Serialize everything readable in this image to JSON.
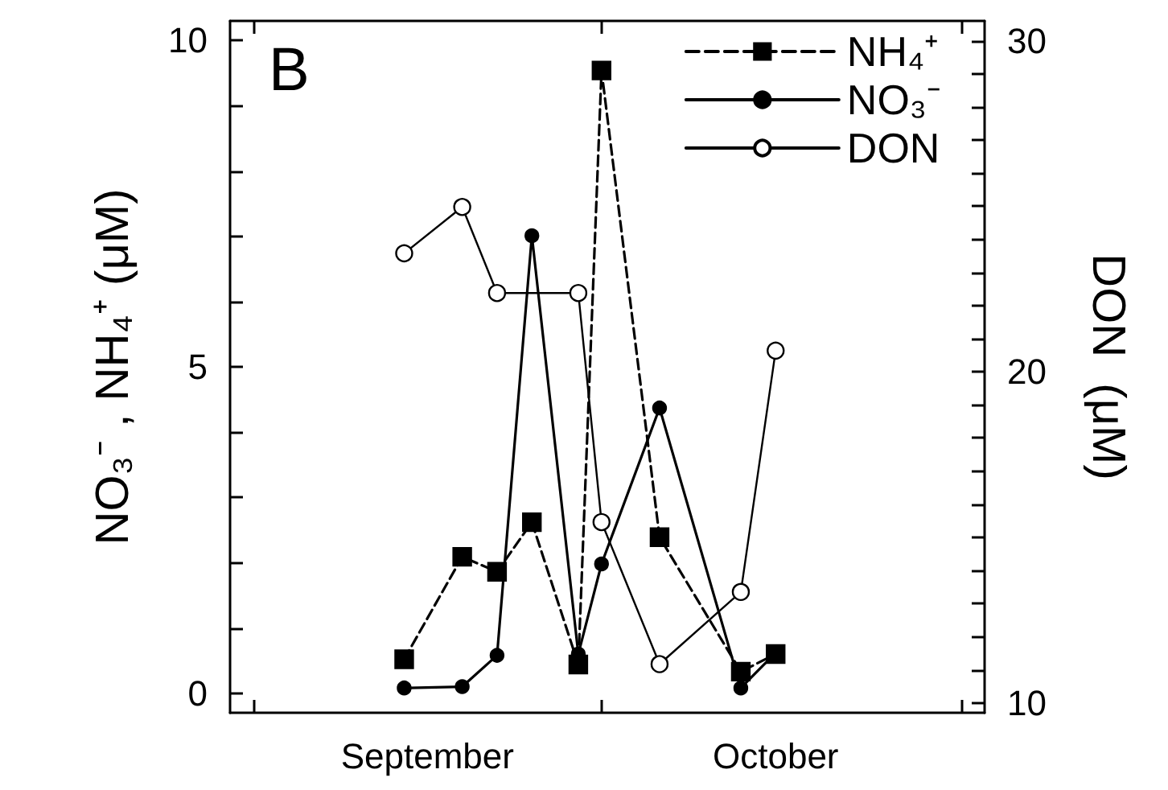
{
  "chart_data": {
    "type": "line",
    "title": "B",
    "ylabel": "NO₃⁻ , NH₄⁺ (μM)",
    "y2label": "DON  (μM)",
    "xlim": [
      "--08-30",
      "--11-03"
    ],
    "xticks": [
      {
        "value": "--09-01",
        "label": null
      },
      {
        "value": "--09-16",
        "label": "September"
      },
      {
        "value": "--10-01",
        "label": null
      },
      {
        "value": "--10-16",
        "label": "October"
      },
      {
        "value": "--11-01",
        "label": null
      }
    ],
    "ylim": [
      -0.3,
      10.3
    ],
    "yticks": [
      0,
      {
        "value": 1,
        "label": null
      },
      {
        "value": 2,
        "label": null
      },
      {
        "value": 3,
        "label": null
      },
      {
        "value": 4,
        "label": null
      },
      5,
      {
        "value": 6,
        "label": null
      },
      {
        "value": 7,
        "label": null
      },
      {
        "value": 8,
        "label": null
      },
      {
        "value": 9,
        "label": null
      },
      10
    ],
    "y2lim": [
      9.7,
      30.6
    ],
    "y2ticks": [
      10,
      {
        "value": 11,
        "label": null
      },
      {
        "value": 12,
        "label": null
      },
      {
        "value": 13,
        "label": null
      },
      {
        "value": 14,
        "label": null
      },
      {
        "value": 15,
        "label": null
      },
      {
        "value": 16,
        "label": null
      },
      {
        "value": 17,
        "label": null
      },
      {
        "value": 18,
        "label": null
      },
      {
        "value": 19,
        "label": null
      },
      20,
      {
        "value": 21,
        "label": null
      },
      {
        "value": 22,
        "label": null
      },
      {
        "value": 23,
        "label": null
      },
      {
        "value": 24,
        "label": null
      },
      {
        "value": 25,
        "label": null
      },
      {
        "value": 26,
        "label": null
      },
      {
        "value": 27,
        "label": null
      },
      {
        "value": 28,
        "label": null
      },
      {
        "value": 29,
        "label": null
      },
      30
    ],
    "legend": "top right",
    "grid": false,
    "series": [
      {
        "name": "NH₄⁺",
        "color": "#000000",
        "marker": "square",
        "line_style": "dashed",
        "x": [
          "--09-14",
          "--09-19",
          "--09-22",
          "--09-25",
          "--09-29",
          "--10-01",
          "--10-06",
          "--10-13",
          "--10-16"
        ],
        "values": [
          0.52,
          2.09,
          1.86,
          2.62,
          0.44,
          9.54,
          2.39,
          0.33,
          0.6
        ]
      },
      {
        "name": "NO₃⁻",
        "color": "#000000",
        "marker": "circle",
        "line_style": "solid",
        "x": [
          "--09-14",
          "--09-19",
          "--09-22",
          "--09-25",
          "--09-29",
          "--10-01",
          "--10-06",
          "--10-13",
          "--10-16"
        ],
        "values": [
          0.08,
          0.1,
          0.58,
          7.01,
          0.6,
          1.98,
          4.37,
          0.08,
          0.62
        ]
      },
      {
        "name": "DON",
        "color": "#000000",
        "marker": "circle",
        "line_style": "solid",
        "axis": "y2",
        "x": [
          "--09-14",
          "--09-19",
          "--09-22",
          "--09-29",
          "--10-01",
          "--10-06",
          "--10-13",
          "--10-16"
        ],
        "values": [
          23.58,
          24.98,
          22.38,
          22.38,
          15.46,
          11.17,
          13.35,
          20.64
        ]
      }
    ]
  }
}
